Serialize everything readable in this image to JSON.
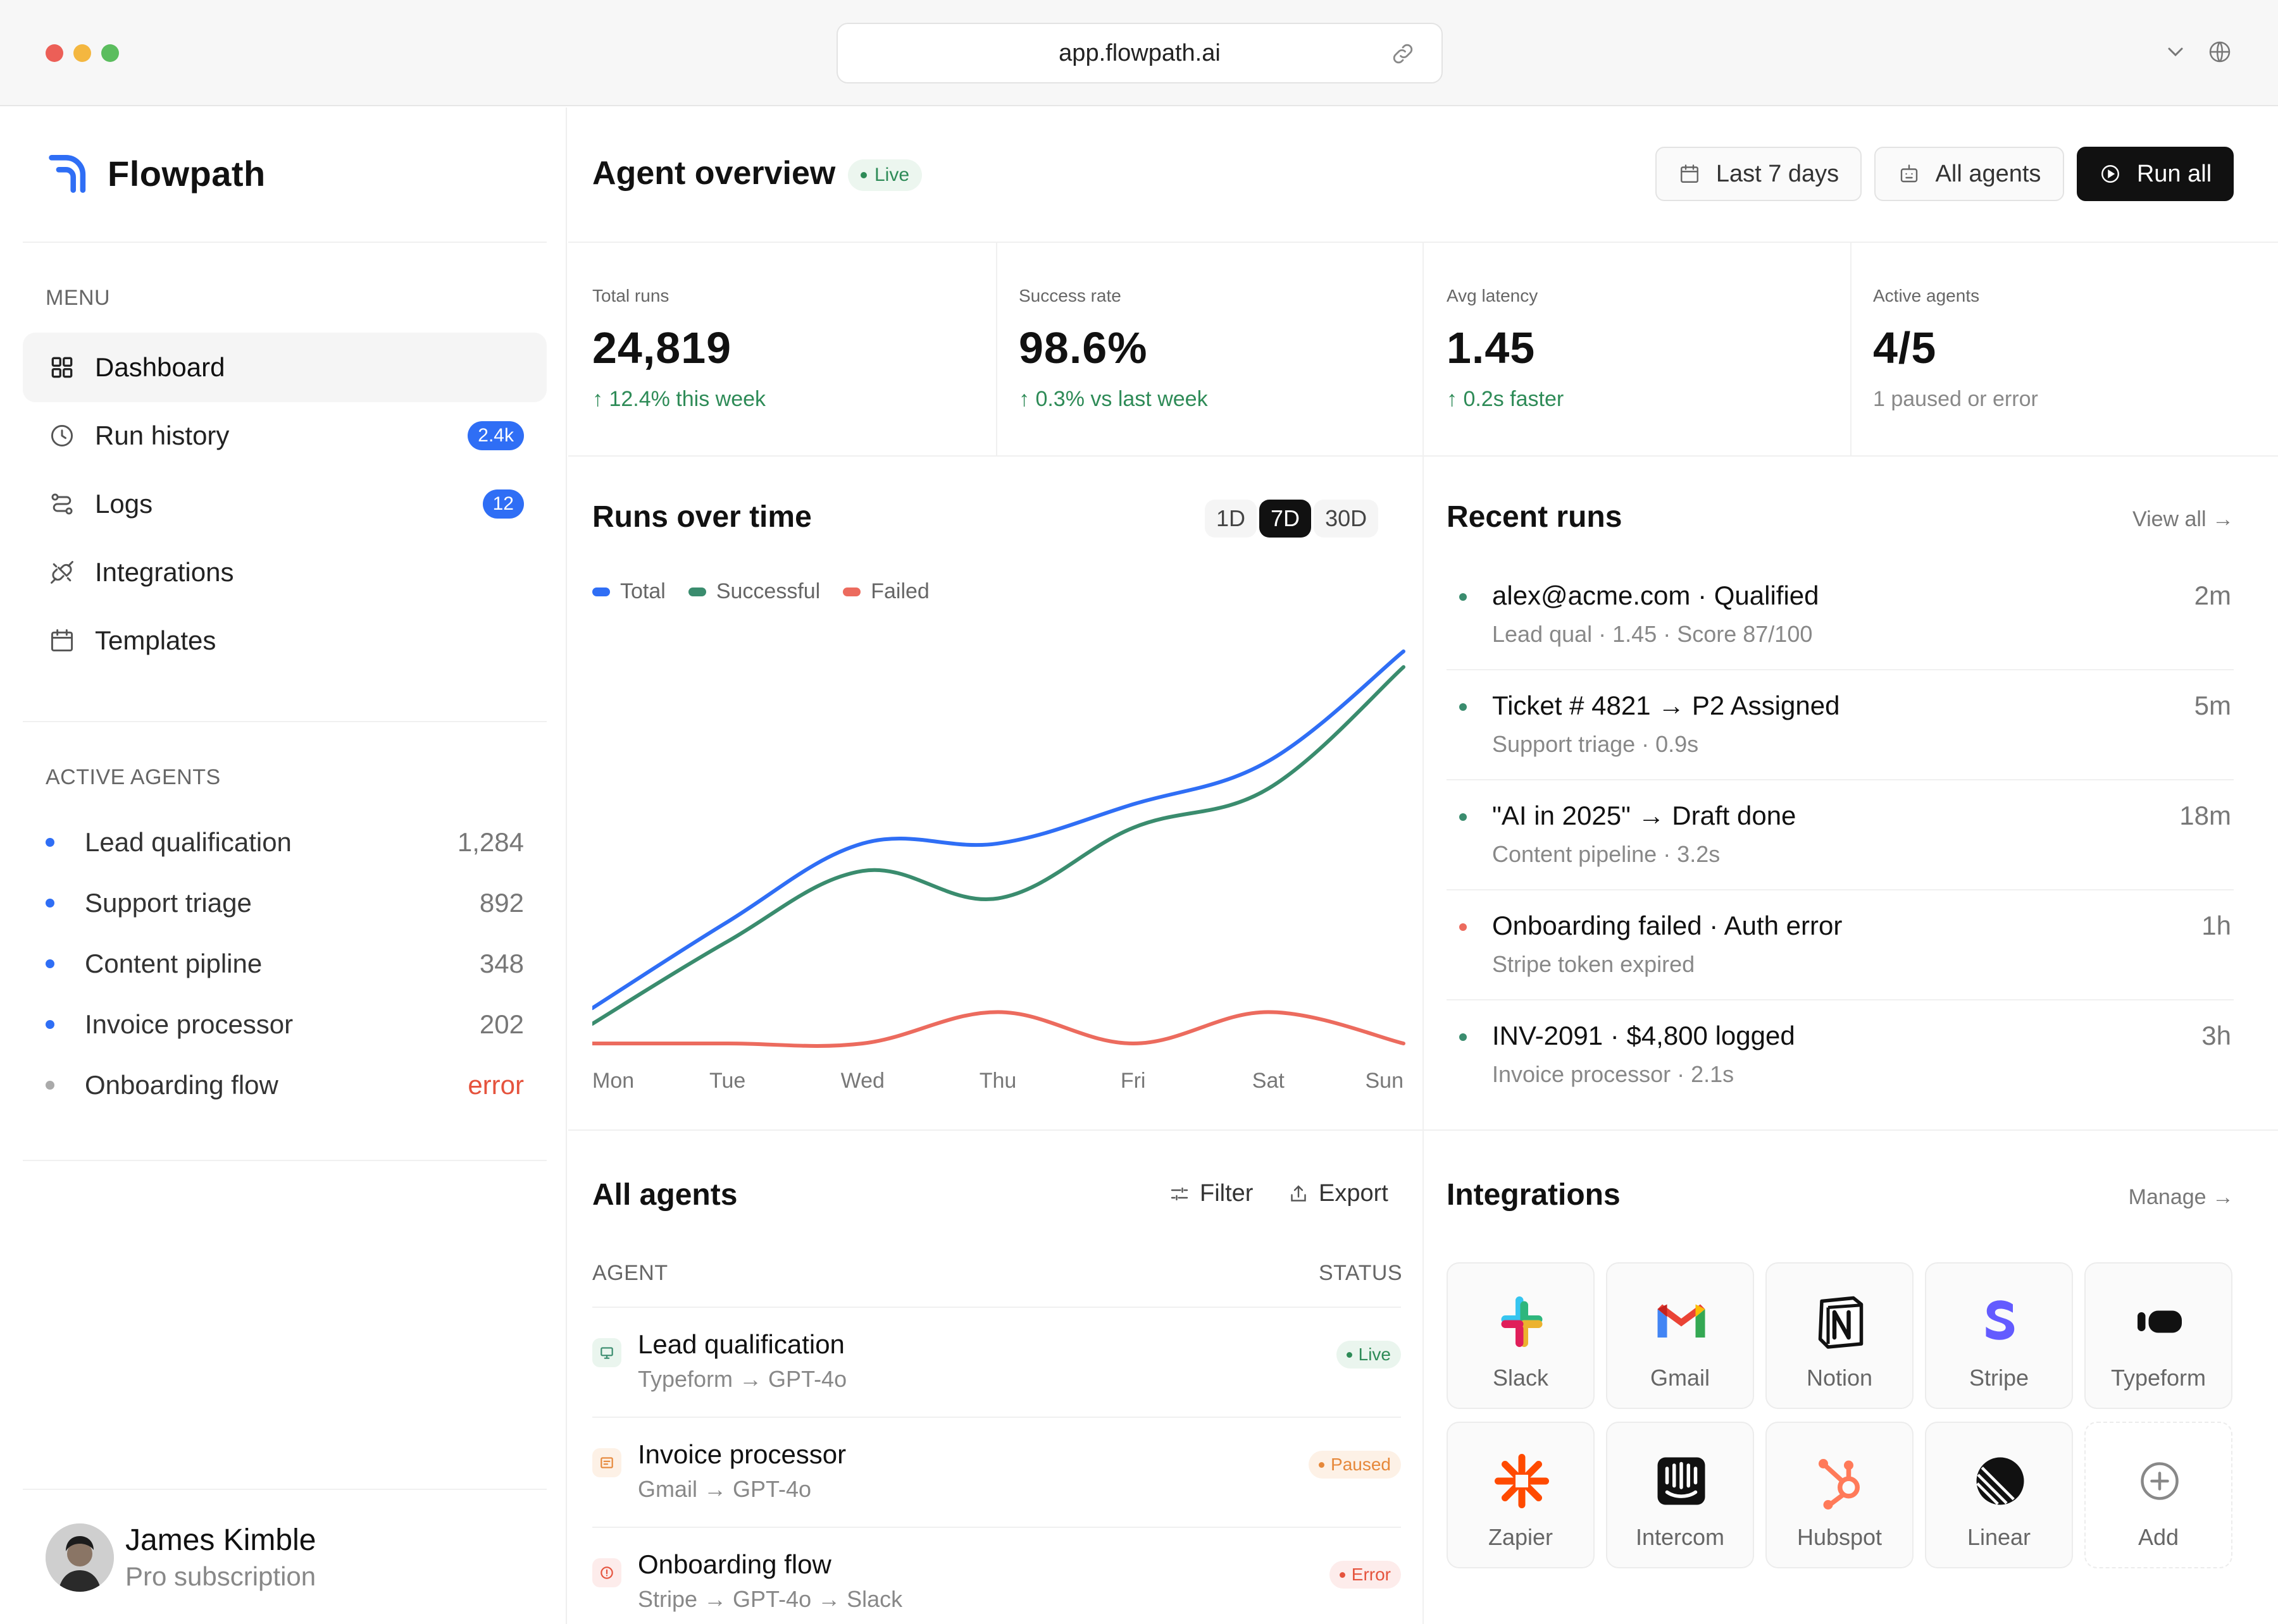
{
  "browser": {
    "url": "app.flowpath.ai"
  },
  "brand": {
    "name": "Flowpath",
    "color": "#2f6ef5"
  },
  "sidebar": {
    "menu_label": "MENU",
    "nav": [
      {
        "label": "Dashboard",
        "icon": "dashboard-icon",
        "active": true
      },
      {
        "label": "Run history",
        "icon": "clock-icon",
        "badge": "2.4k"
      },
      {
        "label": "Logs",
        "icon": "route-icon",
        "badge": "12"
      },
      {
        "label": "Integrations",
        "icon": "plug-icon"
      },
      {
        "label": "Templates",
        "icon": "calendar-icon"
      }
    ],
    "active_agents_label": "ACTIVE AGENTS",
    "agents": [
      {
        "name": "Lead qualification",
        "value": "1,284",
        "status": "ok"
      },
      {
        "name": "Support triage",
        "value": "892",
        "status": "ok"
      },
      {
        "name": "Content pipline",
        "value": "348",
        "status": "ok"
      },
      {
        "name": "Invoice processor",
        "value": "202",
        "status": "ok"
      },
      {
        "name": "Onboarding flow",
        "value": "error",
        "status": "error"
      }
    ],
    "user": {
      "name": "James Kimble",
      "plan": "Pro subscription"
    }
  },
  "header": {
    "title": "Agent overview",
    "live_badge": "Live",
    "date_range": "Last 7 days",
    "agents_filter": "All agents",
    "run_all": "Run all"
  },
  "stats": [
    {
      "label": "Total runs",
      "value": "24,819",
      "delta": "12.4% this week",
      "trend": "up"
    },
    {
      "label": "Success rate",
      "value": "98.6%",
      "delta": "0.3% vs last week",
      "trend": "up"
    },
    {
      "label": "Avg latency",
      "value": "1.45",
      "delta": "0.2s faster",
      "trend": "up"
    },
    {
      "label": "Active agents",
      "value": "4/5",
      "delta": "1 paused or error",
      "trend": "none"
    }
  ],
  "runs_chart": {
    "title": "Runs over time",
    "ranges": [
      "1D",
      "7D",
      "30D"
    ],
    "active_range": "7D"
  },
  "chart_data": {
    "type": "line",
    "title": "Runs over time",
    "categories": [
      "Mon",
      "Tue",
      "Wed",
      "Thu",
      "Fri",
      "Sat",
      "Sun"
    ],
    "series": [
      {
        "name": "Total",
        "color": "#2f6ef5",
        "values": [
          0.09,
          0.31,
          0.51,
          0.51,
          0.61,
          0.72,
          1.0
        ]
      },
      {
        "name": "Successful",
        "color": "#3a8c6e",
        "values": [
          0.05,
          0.26,
          0.44,
          0.37,
          0.55,
          0.65,
          0.96
        ]
      },
      {
        "name": "Failed",
        "color": "#ec6b5e",
        "values": [
          0.0,
          0.0,
          0.0,
          0.08,
          0.0,
          0.08,
          0.0
        ]
      }
    ],
    "ylim": [
      0,
      1
    ],
    "grid": false,
    "legend": "top-left"
  },
  "recent_runs": {
    "title": "Recent runs",
    "view_all": "View all →",
    "items": [
      {
        "title": "alex@acme.com · Qualified",
        "sub": "Lead qual · 1.45 · Score 87/100",
        "time": "2m",
        "status": "success"
      },
      {
        "title": "Ticket # 4821 → P2 Assigned",
        "sub": "Support triage · 0.9s",
        "time": "5m",
        "status": "success"
      },
      {
        "title": "\"AI in 2025\" → Draft done",
        "sub": "Content pipeline · 3.2s",
        "time": "18m",
        "status": "success"
      },
      {
        "title": "Onboarding failed · Auth error",
        "sub": "Stripe token expired",
        "time": "1h",
        "status": "error"
      },
      {
        "title": "INV-2091 · $4,800 logged",
        "sub": "Invoice processor · 2.1s",
        "time": "3h",
        "status": "success"
      }
    ]
  },
  "all_agents": {
    "title": "All agents",
    "filter": "Filter",
    "export": "Export",
    "col_agent": "AGENT",
    "col_status": "STATUS",
    "items": [
      {
        "name": "Lead qualification",
        "flow": "Typeform → GPT-4o",
        "status": "Live",
        "tone": "green"
      },
      {
        "name": "Invoice processor",
        "flow": "Gmail → GPT-4o",
        "status": "Paused",
        "tone": "orange"
      },
      {
        "name": "Onboarding flow",
        "flow": "Stripe → GPT-4o → Slack",
        "status": "Error",
        "tone": "red"
      }
    ]
  },
  "integrations": {
    "title": "Integrations",
    "manage": "Manage →",
    "items": [
      {
        "name": "Slack",
        "icon": "slack-icon"
      },
      {
        "name": "Gmail",
        "icon": "gmail-icon"
      },
      {
        "name": "Notion",
        "icon": "notion-icon"
      },
      {
        "name": "Stripe",
        "icon": "stripe-icon"
      },
      {
        "name": "Typeform",
        "icon": "typeform-icon"
      },
      {
        "name": "Zapier",
        "icon": "zapier-icon"
      },
      {
        "name": "Intercom",
        "icon": "intercom-icon"
      },
      {
        "name": "Hubspot",
        "icon": "hubspot-icon"
      },
      {
        "name": "Linear",
        "icon": "linear-icon"
      },
      {
        "name": "Add",
        "icon": "plus-circle-icon"
      }
    ]
  }
}
